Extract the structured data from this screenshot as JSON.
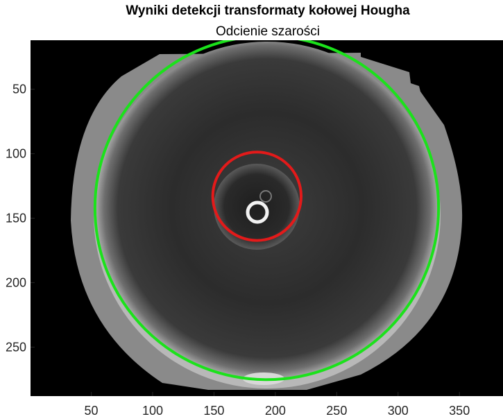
{
  "figure": {
    "title": "Wyniki detekcji transformaty kołowej Hougha",
    "subtitle": "Odcienie szarości"
  },
  "axes": {
    "x_ticks": [
      50,
      100,
      150,
      200,
      250,
      300,
      350
    ],
    "y_ticks": [
      50,
      100,
      150,
      200,
      250
    ],
    "xlim": [
      0.5,
      385.5
    ],
    "ylim": [
      12,
      288
    ],
    "y_direction": "reverse"
  },
  "image": {
    "description_colors": {
      "background": "#000000",
      "iris_dark": "#262626",
      "iris_rim": "#b0b0b0"
    }
  },
  "detected_circles": [
    {
      "name": "outer",
      "center_x": 193,
      "center_y": 142,
      "radius": 140,
      "color": "#1be21b"
    },
    {
      "name": "inner",
      "center_x": 185,
      "center_y": 133,
      "radius": 36,
      "color": "#e31a1a"
    }
  ],
  "colors": {
    "outer_circle": "#1be21b",
    "inner_circle": "#e31a1a",
    "axis_text": "#262626"
  }
}
